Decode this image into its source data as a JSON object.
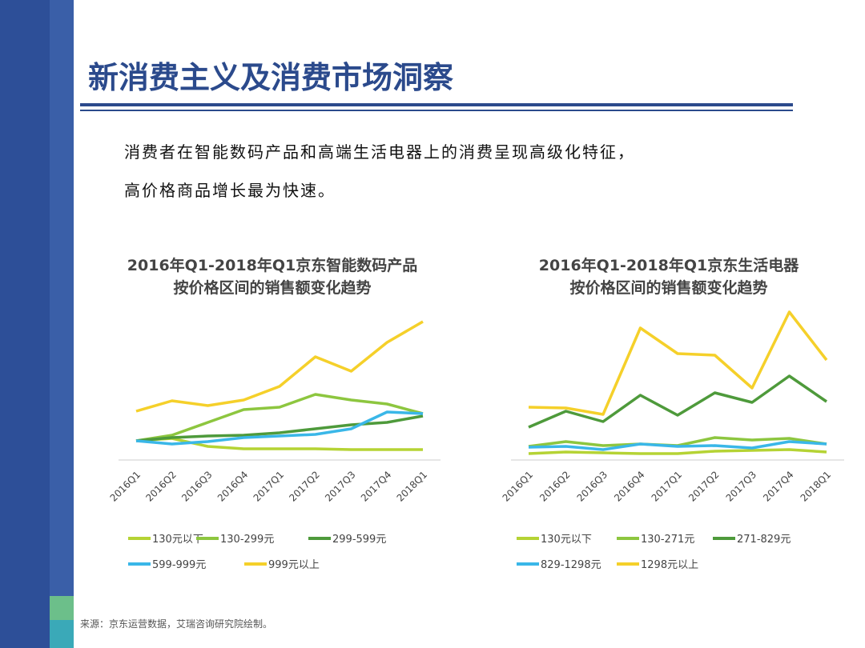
{
  "title": "新消费主义及消费市场洞察",
  "body": [
    "消费者在智能数码产品和高端生活电器上的消费呈现高级化特征，",
    "高价格商品增长最为快速。"
  ],
  "chart_data": [
    {
      "type": "line",
      "title": "2016年Q1-2018年Q1京东智能数码产品",
      "subtitle": "按价格区间的销售额变化趋势",
      "categories": [
        "2016Q1",
        "2016Q2",
        "2016Q3",
        "2016Q4",
        "2017Q1",
        "2017Q2",
        "2017Q3",
        "2017Q4",
        "2018Q1"
      ],
      "ylim": [
        0,
        100
      ],
      "grid": false,
      "series": [
        {
          "name": "130元以下",
          "color": "#b5d334",
          "values": [
            10.5,
            12,
            7,
            5.5,
            5.5,
            5.5,
            5,
            5,
            5
          ]
        },
        {
          "name": "130-299元",
          "color": "#8dc63f",
          "values": [
            10.5,
            14,
            22,
            30,
            31.5,
            39.5,
            36,
            33.5,
            27.5
          ]
        },
        {
          "name": "299-599元",
          "color": "#4e9a3b",
          "values": [
            10.5,
            12.5,
            13.5,
            14,
            15.5,
            18,
            20.5,
            22,
            26
          ]
        },
        {
          "name": "599-999元",
          "color": "#3ab7e8",
          "values": [
            10.5,
            8.5,
            10,
            12.5,
            13.5,
            14.5,
            18,
            28.5,
            27.5
          ]
        },
        {
          "name": "999元以上",
          "color": "#f5d02a",
          "values": [
            29,
            35.5,
            32.5,
            36,
            44.5,
            63,
            54,
            72,
            85
          ]
        }
      ]
    },
    {
      "type": "line",
      "title": "2016年Q1-2018年Q1京东生活电器",
      "subtitle": "按价格区间的销售额变化趋势",
      "categories": [
        "2016Q1",
        "2016Q2",
        "2016Q3",
        "2016Q4",
        "2017Q1",
        "2017Q2",
        "2017Q3",
        "2017Q4",
        "2018Q1"
      ],
      "ylim": [
        0,
        100
      ],
      "grid": false,
      "series": [
        {
          "name": "130元以下",
          "color": "#b5d334",
          "values": [
            2.5,
            3.5,
            3,
            2.5,
            2.5,
            4,
            4.5,
            5,
            3.5
          ]
        },
        {
          "name": "130-271元",
          "color": "#8dc63f",
          "values": [
            7,
            10,
            7.5,
            8.5,
            7.5,
            12.5,
            11,
            12,
            8.5
          ]
        },
        {
          "name": "271-829元",
          "color": "#4e9a3b",
          "values": [
            19,
            29,
            22.5,
            39,
            26.5,
            40.5,
            34.5,
            51,
            35
          ]
        },
        {
          "name": "829-1298元",
          "color": "#3ab7e8",
          "values": [
            6.5,
            7,
            5,
            8.5,
            7,
            7.5,
            6,
            10,
            8.5
          ]
        },
        {
          "name": "1298元以上",
          "color": "#f5d02a",
          "values": [
            31.5,
            31,
            27,
            81,
            65,
            64,
            43.5,
            91,
            61
          ]
        }
      ]
    }
  ],
  "source": "来源：京东运营数据，艾瑞咨询研究院绘制。"
}
